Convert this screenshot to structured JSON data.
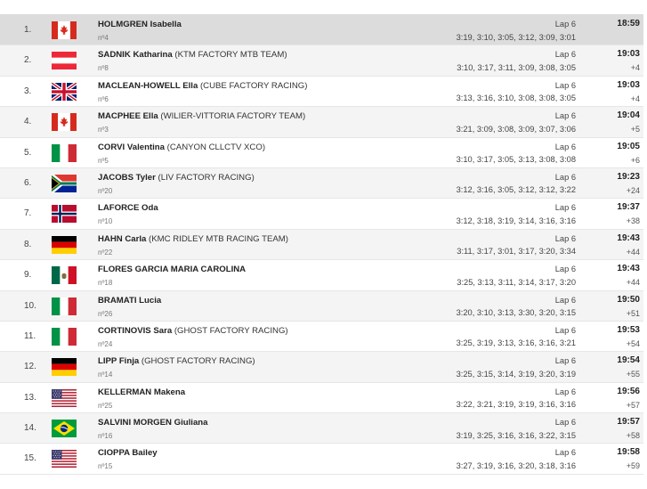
{
  "results": [
    {
      "pos": "1.",
      "flag": "canada-flag-icon",
      "name": "HOLMGREN Isabella",
      "team": "",
      "num": "nº4",
      "lap": "Lap 6",
      "splits": "3:19, 3:10, 3:05, 3:12, 3:09, 3:01",
      "time": "18:59",
      "gap": ""
    },
    {
      "pos": "2.",
      "flag": "austria-flag-icon",
      "name": "SADNIK Katharina",
      "team": " (KTM FACTORY MTB TEAM)",
      "num": "nº8",
      "lap": "Lap 6",
      "splits": "3:10, 3:17, 3:11, 3:09, 3:08, 3:05",
      "time": "19:03",
      "gap": "+4"
    },
    {
      "pos": "3.",
      "flag": "uk-flag-icon",
      "name": "MACLEAN-HOWELL Ella",
      "team": " (CUBE FACTORY RACING)",
      "num": "nº6",
      "lap": "Lap 6",
      "splits": "3:13, 3:16, 3:10, 3:08, 3:08, 3:05",
      "time": "19:03",
      "gap": "+4"
    },
    {
      "pos": "4.",
      "flag": "canada-flag-icon",
      "name": "MACPHEE Ella",
      "team": " (WILIER-VITTORIA FACTORY TEAM)",
      "num": "nº3",
      "lap": "Lap 6",
      "splits": "3:21, 3:09, 3:08, 3:09, 3:07, 3:06",
      "time": "19:04",
      "gap": "+5"
    },
    {
      "pos": "5.",
      "flag": "italy-flag-icon",
      "name": "CORVI Valentina",
      "team": " (CANYON CLLCTV XCO)",
      "num": "nº5",
      "lap": "Lap 6",
      "splits": "3:10, 3:17, 3:05, 3:13, 3:08, 3:08",
      "time": "19:05",
      "gap": "+6"
    },
    {
      "pos": "6.",
      "flag": "south-africa-flag-icon",
      "name": "JACOBS Tyler",
      "team": " (LIV FACTORY RACING)",
      "num": "nº20",
      "lap": "Lap 6",
      "splits": "3:12, 3:16, 3:05, 3:12, 3:12, 3:22",
      "time": "19:23",
      "gap": "+24"
    },
    {
      "pos": "7.",
      "flag": "norway-flag-icon",
      "name": "LAFORCE Oda",
      "team": "",
      "num": "nº10",
      "lap": "Lap 6",
      "splits": "3:12, 3:18, 3:19, 3:14, 3:16, 3:16",
      "time": "19:37",
      "gap": "+38"
    },
    {
      "pos": "8.",
      "flag": "germany-flag-icon",
      "name": "HAHN Carla",
      "team": " (KMC RIDLEY MTB RACING TEAM)",
      "num": "nº22",
      "lap": "Lap 6",
      "splits": "3:11, 3:17, 3:01, 3:17, 3:20, 3:34",
      "time": "19:43",
      "gap": "+44"
    },
    {
      "pos": "9.",
      "flag": "mexico-flag-icon",
      "name": "FLORES GARCIA MARIA CAROLINA",
      "team": "",
      "num": "nº18",
      "lap": "Lap 6",
      "splits": "3:25, 3:13, 3:11, 3:14, 3:17, 3:20",
      "time": "19:43",
      "gap": "+44"
    },
    {
      "pos": "10.",
      "flag": "italy-flag-icon",
      "name": "BRAMATI Lucia",
      "team": "",
      "num": "nº26",
      "lap": "Lap 6",
      "splits": "3:20, 3:10, 3:13, 3:30, 3:20, 3:15",
      "time": "19:50",
      "gap": "+51"
    },
    {
      "pos": "11.",
      "flag": "italy-flag-icon",
      "name": "CORTINOVIS Sara",
      "team": " (GHOST FACTORY RACING)",
      "num": "nº24",
      "lap": "Lap 6",
      "splits": "3:25, 3:19, 3:13, 3:16, 3:16, 3:21",
      "time": "19:53",
      "gap": "+54"
    },
    {
      "pos": "12.",
      "flag": "germany-flag-icon",
      "name": "LIPP Finja",
      "team": " (GHOST FACTORY RACING)",
      "num": "nº14",
      "lap": "Lap 6",
      "splits": "3:25, 3:15, 3:14, 3:19, 3:20, 3:19",
      "time": "19:54",
      "gap": "+55"
    },
    {
      "pos": "13.",
      "flag": "usa-flag-icon",
      "name": "KELLERMAN Makena",
      "team": "",
      "num": "nº25",
      "lap": "Lap 6",
      "splits": "3:22, 3:21, 3:19, 3:19, 3:16, 3:16",
      "time": "19:56",
      "gap": "+57"
    },
    {
      "pos": "14.",
      "flag": "brazil-flag-icon",
      "name": "SALVINI MORGEN Giuliana",
      "team": "",
      "num": "nº16",
      "lap": "Lap 6",
      "splits": "3:19, 3:25, 3:16, 3:16, 3:22, 3:15",
      "time": "19:57",
      "gap": "+58"
    },
    {
      "pos": "15.",
      "flag": "usa-flag-icon",
      "name": "CIOPPA Bailey",
      "team": "",
      "num": "nº15",
      "lap": "Lap 6",
      "splits": "3:27, 3:19, 3:16, 3:20, 3:18, 3:16",
      "time": "19:58",
      "gap": "+59"
    }
  ]
}
